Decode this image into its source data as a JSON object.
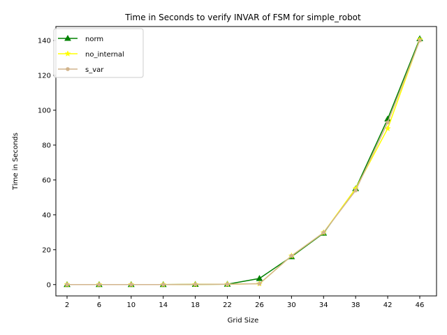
{
  "chart_data": {
    "type": "line",
    "title": "Time in Seconds to verify INVAR of FSM for simple_robot",
    "xlabel": "Grid Size",
    "ylabel": "Time in Seconds",
    "categories": [
      "2",
      "6",
      "10",
      "14",
      "18",
      "22",
      "26",
      "30",
      "34",
      "38",
      "42",
      "46"
    ],
    "yticks": [
      0,
      20,
      40,
      60,
      80,
      100,
      120,
      140
    ],
    "ylim": [
      -6.5,
      148
    ],
    "grid": false,
    "legend_position": "top-left",
    "series": [
      {
        "name": "norm",
        "color": "#008000",
        "marker": "triangle",
        "values": [
          0.0,
          0.0,
          0.0,
          0.0,
          0.1,
          0.2,
          3.5,
          16.0,
          29.5,
          55.0,
          95.0,
          141.0
        ]
      },
      {
        "name": "no_internal",
        "color": "#ffff00",
        "marker": "star",
        "values": [
          0.0,
          0.0,
          0.0,
          0.0,
          0.1,
          0.2,
          0.5,
          16.5,
          29.8,
          55.0,
          89.5,
          140.5
        ]
      },
      {
        "name": "s_var",
        "color": "#d2b48c",
        "marker": "circle",
        "values": [
          0.0,
          0.0,
          0.0,
          0.0,
          0.1,
          0.2,
          0.5,
          16.5,
          29.8,
          54.0,
          93.0,
          140.0
        ]
      }
    ]
  }
}
